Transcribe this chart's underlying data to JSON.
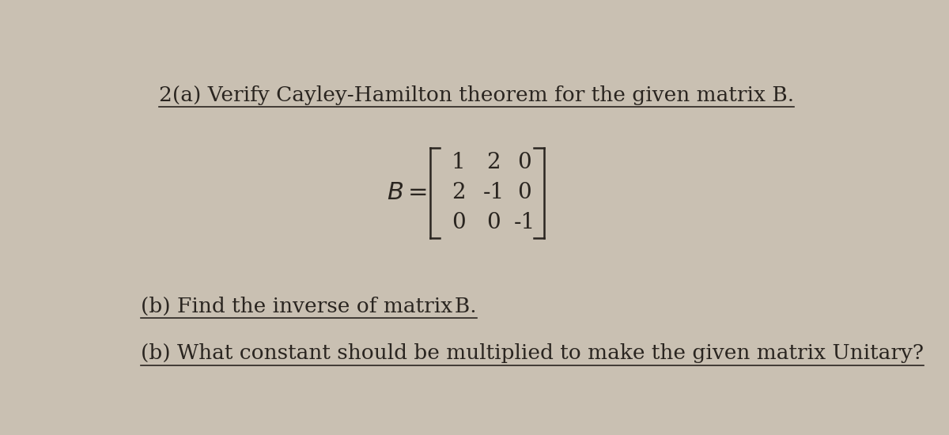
{
  "background_color": "#c9c0b2",
  "text_color": "#2a2520",
  "line1": "2(a) Verify Cayley-Hamilton theorem for the given matrix B.",
  "matrix_rows": [
    [
      "1",
      "2",
      "0"
    ],
    [
      "2",
      "-1",
      "0"
    ],
    [
      "0",
      "0",
      "-1"
    ]
  ],
  "line3": "(b) Find the inverse of matrix B.",
  "line4": "(b) What constant should be multiplied to make the given matrix Unitary?",
  "font_size_main": 19,
  "font_size_matrix": 20
}
